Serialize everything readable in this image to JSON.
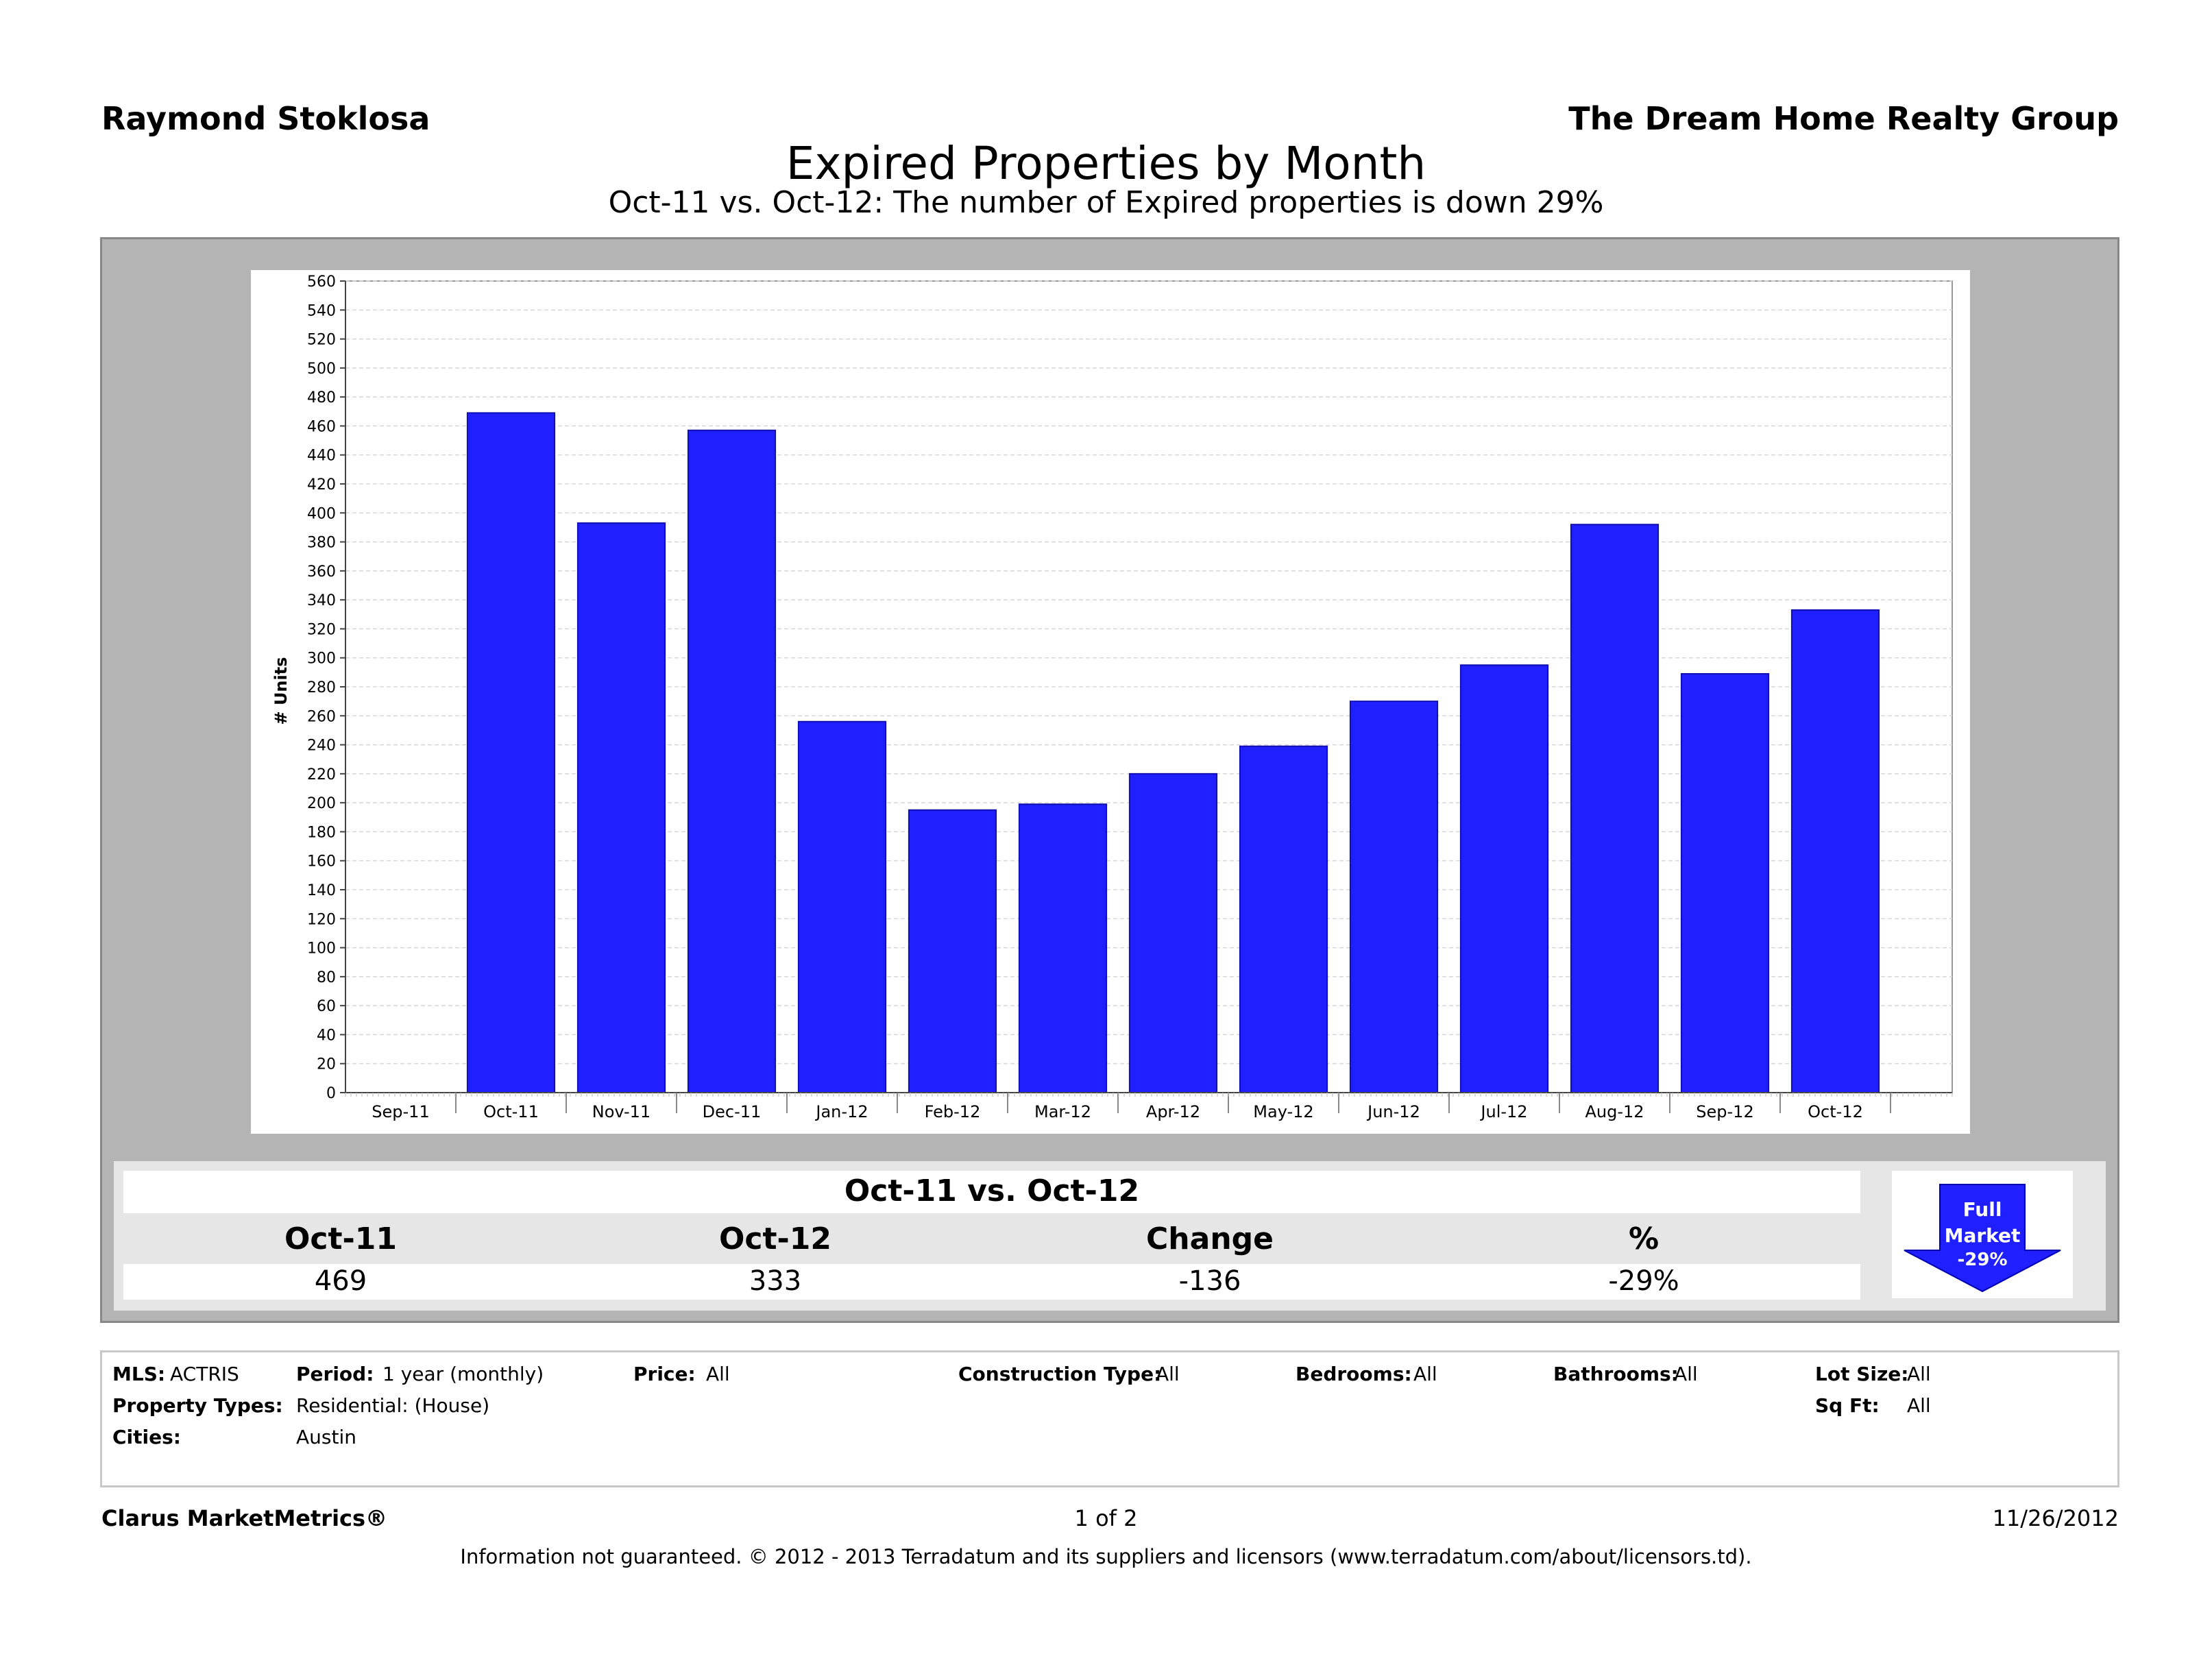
{
  "header": {
    "agent_name": "Raymond Stoklosa",
    "company_name": "The Dream Home Realty Group",
    "title": "Expired Properties by Month",
    "subtitle": "Oct-11 vs. Oct-12: The number of Expired properties is down 29%"
  },
  "colors": {
    "bar": "#1f1fff",
    "panel": "#b4b4b4",
    "badge": "#1f1fff"
  },
  "chart_data": {
    "type": "bar",
    "categories": [
      "Sep-11",
      "Oct-11",
      "Nov-11",
      "Dec-11",
      "Jan-12",
      "Feb-12",
      "Mar-12",
      "Apr-12",
      "May-12",
      "Jun-12",
      "Jul-12",
      "Aug-12",
      "Sep-12",
      "Oct-12"
    ],
    "values": [
      null,
      469,
      393,
      457,
      256,
      195,
      199,
      220,
      239,
      270,
      295,
      392,
      289,
      333
    ],
    "ylabel": "# Units",
    "ylim": [
      0,
      560
    ],
    "ytick_step": 20,
    "grid": true,
    "legend": "none"
  },
  "summary": {
    "title": "Oct-11 vs. Oct-12",
    "headers": [
      "Oct-11",
      "Oct-12",
      "Change",
      "%"
    ],
    "values": [
      "469",
      "333",
      "-136",
      "-29%"
    ],
    "badge": {
      "line1": "Full",
      "line2": "Market",
      "line3": "-29%",
      "icon": "down-arrow-icon"
    }
  },
  "criteria": {
    "mls_label": "MLS:",
    "mls_value": "ACTRIS",
    "period_label": "Period:",
    "period_value": "1 year (monthly)",
    "price_label": "Price:",
    "price_value": "All",
    "construction_label": "Construction Type:",
    "construction_value": "All",
    "bedrooms_label": "Bedrooms:",
    "bedrooms_value": "All",
    "bathrooms_label": "Bathrooms:",
    "bathrooms_value": "All",
    "lotsize_label": "Lot Size:",
    "lotsize_value": "All",
    "property_types_label": "Property Types:",
    "property_types_value": "Residential: (House)",
    "sqft_label": "Sq Ft:",
    "sqft_value": "All",
    "cities_label": "Cities:",
    "cities_value": "Austin"
  },
  "footer": {
    "brand": "Clarus MarketMetrics®",
    "page": "1 of 2",
    "date": "11/26/2012",
    "disclaimer": "Information not guaranteed.  © 2012 - 2013 Terradatum and its suppliers and licensors (www.terradatum.com/about/licensors.td)."
  }
}
